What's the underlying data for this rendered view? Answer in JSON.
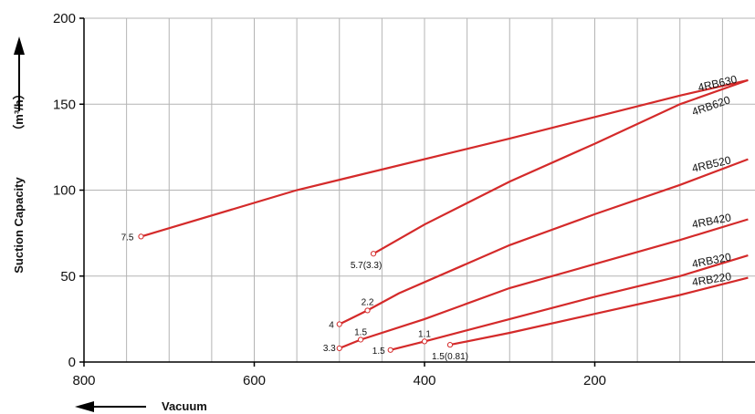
{
  "chart_data": {
    "type": "line",
    "xlabel": "Vacuum",
    "ylabel": "Suction Capacity",
    "yunit": "（m³/h）",
    "xlim": [
      800,
      20
    ],
    "ylim": [
      0,
      200
    ],
    "x_ticks": [
      800,
      600,
      400,
      200
    ],
    "y_ticks": [
      0,
      50,
      100,
      150,
      200
    ],
    "x_grid_values": [
      750,
      700,
      650,
      600,
      550,
      500,
      450,
      400,
      350,
      300,
      250,
      200,
      150,
      100,
      50
    ],
    "grid": true,
    "colors": {
      "series": "#d42a2a",
      "grid": "#b4b4b4",
      "axis": "#000000"
    },
    "series": [
      {
        "name": "4RB630",
        "points": [
          [
            733,
            73
          ],
          [
            550,
            100
          ],
          [
            300,
            130
          ],
          [
            100,
            155
          ],
          [
            20,
            164
          ]
        ],
        "start_label": "7.5",
        "label_at": [
          55,
          160
        ]
      },
      {
        "name": "4RB620",
        "points": [
          [
            460,
            63
          ],
          [
            400,
            80
          ],
          [
            300,
            105
          ],
          [
            200,
            127
          ],
          [
            100,
            150
          ],
          [
            20,
            164
          ]
        ],
        "start_label": "5.7(3.3)",
        "label_at": [
          62,
          147
        ]
      },
      {
        "name": "4RB520",
        "points": [
          [
            500,
            22
          ],
          [
            467,
            30
          ],
          [
            430,
            40
          ],
          [
            300,
            68
          ],
          [
            200,
            86
          ],
          [
            100,
            103
          ],
          [
            20,
            118
          ]
        ],
        "start_label": "4",
        "mid_label": "2.2",
        "label_at": [
          62,
          113
        ]
      },
      {
        "name": "4RB420",
        "points": [
          [
            500,
            8
          ],
          [
            475,
            13
          ],
          [
            400,
            25
          ],
          [
            300,
            43
          ],
          [
            200,
            57
          ],
          [
            100,
            71
          ],
          [
            20,
            83
          ]
        ],
        "start_label": "3.3",
        "mid_label": "1.5",
        "label_at": [
          62,
          80
        ]
      },
      {
        "name": "4RB320",
        "points": [
          [
            440,
            7
          ],
          [
            400,
            12
          ],
          [
            300,
            25
          ],
          [
            200,
            38
          ],
          [
            100,
            50
          ],
          [
            20,
            62
          ]
        ],
        "start_label": "1.5",
        "mid_label": "1.1",
        "label_at": [
          62,
          57
        ]
      },
      {
        "name": "4RB220",
        "points": [
          [
            370,
            10
          ],
          [
            300,
            17
          ],
          [
            200,
            28
          ],
          [
            100,
            39
          ],
          [
            20,
            49
          ]
        ],
        "start_label": "1.5(0.81)",
        "label_at": [
          62,
          46
        ]
      }
    ]
  }
}
